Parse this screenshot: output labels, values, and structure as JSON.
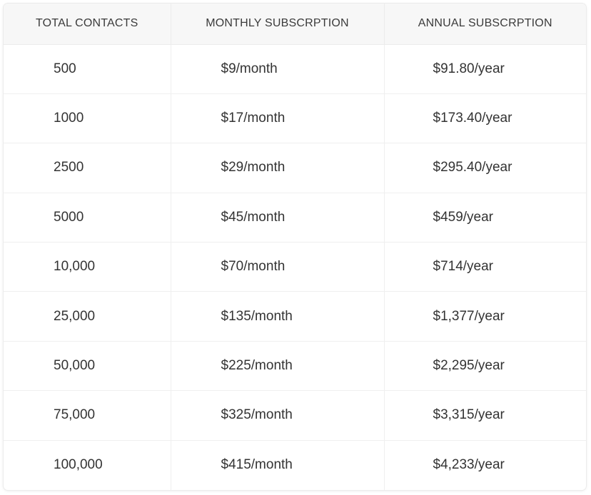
{
  "table": {
    "headers": [
      "TOTAL CONTACTS",
      "MONTHLY SUBSCRPTION",
      "ANNUAL SUBSCRPTION"
    ],
    "rows": [
      [
        "500",
        "$9/month",
        "$91.80/year"
      ],
      [
        "1000",
        "$17/month",
        "$173.40/year"
      ],
      [
        "2500",
        "$29/month",
        "$295.40/year"
      ],
      [
        "5000",
        "$45/month",
        "$459/year"
      ],
      [
        "10,000",
        "$70/month",
        "$714/year"
      ],
      [
        "25,000",
        "$135/month",
        "$1,377/year"
      ],
      [
        "50,000",
        "$225/month",
        "$2,295/year"
      ],
      [
        "75,000",
        "$325/month",
        "$3,315/year"
      ],
      [
        "100,000",
        "$415/month",
        "$4,233/year"
      ]
    ]
  }
}
